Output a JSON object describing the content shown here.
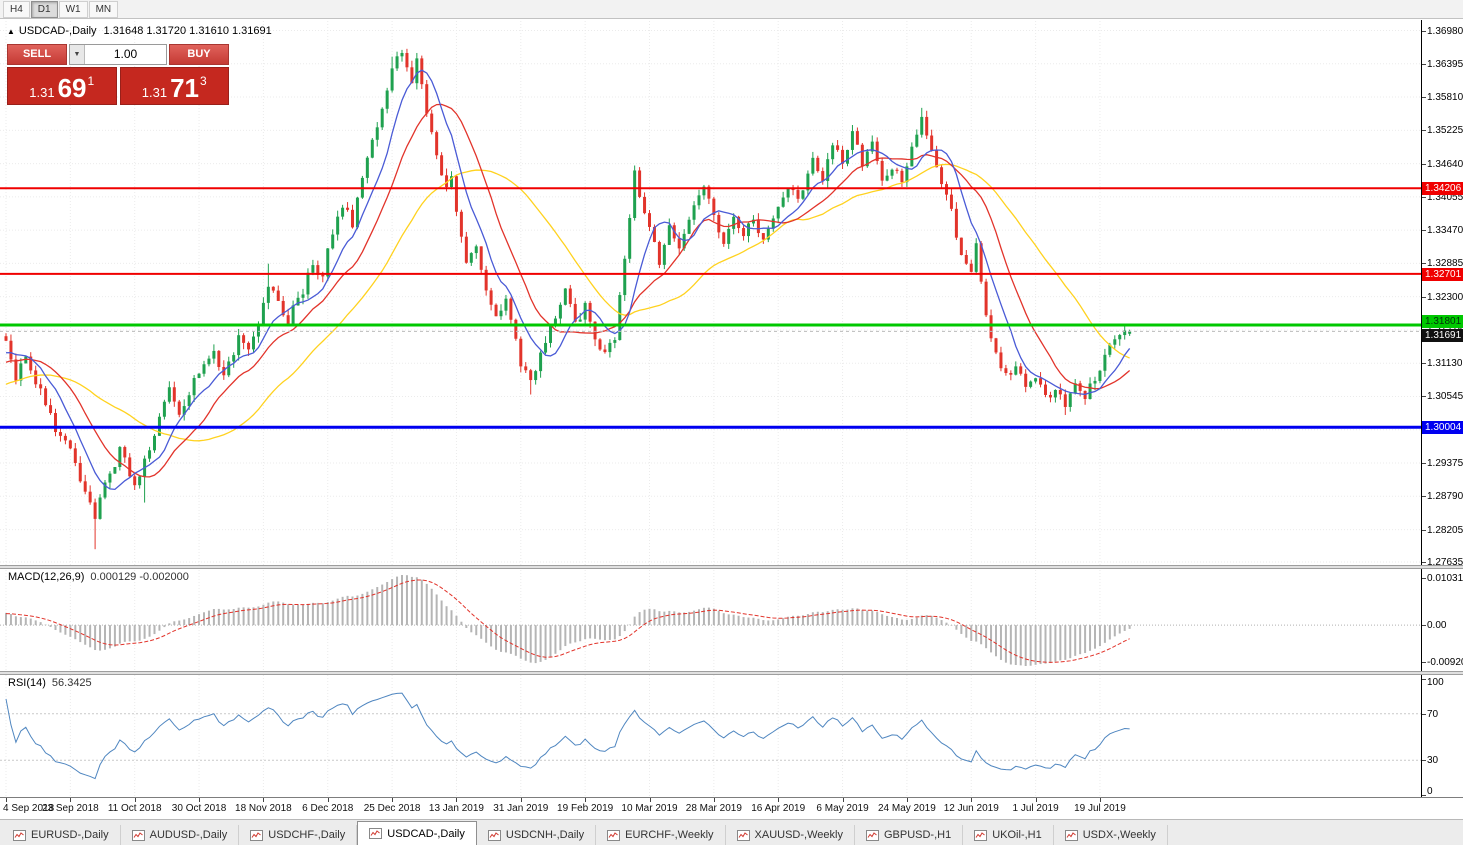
{
  "toolbar": {
    "timeframes": [
      {
        "label": "H4",
        "active": false
      },
      {
        "label": "D1",
        "active": true
      },
      {
        "label": "W1",
        "active": false
      },
      {
        "label": "MN",
        "active": false
      }
    ]
  },
  "icons": {
    "panel_toggle": "▲",
    "volume_dropdown": "▼"
  },
  "chart": {
    "title": {
      "symbol": "USDCAD-,Daily",
      "ohlc": "1.31648 1.31720 1.31610 1.31691"
    },
    "trade_panel": {
      "sell_label": "SELL",
      "buy_label": "BUY",
      "volume": "1.00",
      "sell_price": {
        "base": "1.31",
        "big": "69",
        "sup": "1"
      },
      "buy_price": {
        "base": "1.31",
        "big": "71",
        "sup": "3"
      }
    }
  },
  "indicators": {
    "macd": {
      "name": "MACD(12,26,9)",
      "values": "0.000129 -0.002000",
      "scale_top": "0.010311",
      "scale_zero": "0.00",
      "scale_bottom": "-0.009203"
    },
    "rsi": {
      "name": "RSI(14)",
      "value": "56.3425",
      "levels": [
        "100",
        "70",
        "30",
        "0"
      ]
    }
  },
  "tabs": [
    {
      "label": "EURUSD-,Daily",
      "active": false
    },
    {
      "label": "AUDUSD-,Daily",
      "active": false
    },
    {
      "label": "USDCHF-,Daily",
      "active": false
    },
    {
      "label": "USDCAD-,Daily",
      "active": true
    },
    {
      "label": "USDCNH-,Daily",
      "active": false
    },
    {
      "label": "EURCHF-,Weekly",
      "active": false
    },
    {
      "label": "XAUUSD-,Weekly",
      "active": false
    },
    {
      "label": "GBPUSD-,H1",
      "active": false
    },
    {
      "label": "UKOil-,H1",
      "active": false
    },
    {
      "label": "USDX-,Weekly",
      "active": false
    }
  ],
  "chart_data": {
    "type": "candlestick",
    "symbol": "USDCAD",
    "timeframe": "Daily",
    "last_candle": {
      "open": 1.31648,
      "high": 1.3172,
      "low": 1.3161,
      "close": 1.31691
    },
    "y_range": [
      1.27635,
      1.3698
    ],
    "price_scale_labels": [
      "1.36980",
      "1.36395",
      "1.35810",
      "1.35225",
      "1.34640",
      "1.34055",
      "1.33470",
      "1.32885",
      "1.32300",
      "1.31715",
      "1.31130",
      "1.30545",
      "1.29960",
      "1.29375",
      "1.28790",
      "1.28205",
      "1.27635"
    ],
    "x_tick_labels": [
      "4 Sep 2018",
      "23 Sep 2018",
      "11 Oct 2018",
      "30 Oct 2018",
      "18 Nov 2018",
      "6 Dec 2018",
      "25 Dec 2018",
      "13 Jan 2019",
      "31 Jan 2019",
      "19 Feb 2019",
      "10 Mar 2019",
      "28 Mar 2019",
      "16 Apr 2019",
      "6 May 2019",
      "24 May 2019",
      "12 Jun 2019",
      "1 Jul 2019",
      "19 Jul 2019"
    ],
    "candles_per_label": 13,
    "candle_count": 228,
    "warmup": {
      "count": 40,
      "start": 1.298,
      "end": 1.314
    },
    "noise_amplitude": 0.0009,
    "wick_amplitude": 0.0012,
    "close_anchors": [
      [
        0,
        1.316
      ],
      [
        2,
        1.309
      ],
      [
        4,
        1.312
      ],
      [
        7,
        1.306
      ],
      [
        10,
        1.2995
      ],
      [
        13,
        1.2958
      ],
      [
        15,
        1.2905
      ],
      [
        17,
        1.2868
      ],
      [
        18,
        1.284
      ],
      [
        20,
        1.2902
      ],
      [
        23,
        1.2958
      ],
      [
        26,
        1.2905
      ],
      [
        28,
        1.294
      ],
      [
        30,
        1.2992
      ],
      [
        33,
        1.3075
      ],
      [
        35,
        1.303
      ],
      [
        39,
        1.3095
      ],
      [
        42,
        1.313
      ],
      [
        44,
        1.309
      ],
      [
        47,
        1.3158
      ],
      [
        49,
        1.313
      ],
      [
        51,
        1.3185
      ],
      [
        53,
        1.3252
      ],
      [
        55,
        1.3215
      ],
      [
        57,
        1.319
      ],
      [
        60,
        1.324
      ],
      [
        62,
        1.329
      ],
      [
        64,
        1.3262
      ],
      [
        65,
        1.331
      ],
      [
        68,
        1.3388
      ],
      [
        70,
        1.336
      ],
      [
        72,
        1.3445
      ],
      [
        74,
        1.35
      ],
      [
        76,
        1.3558
      ],
      [
        78,
        1.3635
      ],
      [
        80,
        1.3655
      ],
      [
        82,
        1.3612
      ],
      [
        83,
        1.3648
      ],
      [
        85,
        1.356
      ],
      [
        87,
        1.347
      ],
      [
        89,
        1.342
      ],
      [
        90,
        1.3442
      ],
      [
        91,
        1.3372
      ],
      [
        93,
        1.329
      ],
      [
        95,
        1.3318
      ],
      [
        97,
        1.324
      ],
      [
        99,
        1.3192
      ],
      [
        101,
        1.3228
      ],
      [
        103,
        1.315
      ],
      [
        104,
        1.3112
      ],
      [
        106,
        1.3082
      ],
      [
        108,
        1.3128
      ],
      [
        111,
        1.32
      ],
      [
        113,
        1.3242
      ],
      [
        115,
        1.318
      ],
      [
        117,
        1.3215
      ],
      [
        119,
        1.3152
      ],
      [
        121,
        1.3125
      ],
      [
        123,
        1.316
      ],
      [
        125,
        1.33
      ],
      [
        127,
        1.3443
      ],
      [
        129,
        1.338
      ],
      [
        130,
        1.3352
      ],
      [
        132,
        1.3292
      ],
      [
        134,
        1.3358
      ],
      [
        136,
        1.3322
      ],
      [
        139,
        1.339
      ],
      [
        141,
        1.3428
      ],
      [
        143,
        1.3372
      ],
      [
        145,
        1.3322
      ],
      [
        147,
        1.3378
      ],
      [
        149,
        1.334
      ],
      [
        151,
        1.3368
      ],
      [
        153,
        1.3322
      ],
      [
        156,
        1.339
      ],
      [
        158,
        1.3428
      ],
      [
        160,
        1.34
      ],
      [
        163,
        1.3468
      ],
      [
        165,
        1.344
      ],
      [
        167,
        1.349
      ],
      [
        169,
        1.347
      ],
      [
        171,
        1.3518
      ],
      [
        173,
        1.346
      ],
      [
        175,
        1.3498
      ],
      [
        177,
        1.344
      ],
      [
        179,
        1.3455
      ],
      [
        181,
        1.3432
      ],
      [
        183,
        1.3498
      ],
      [
        185,
        1.3542
      ],
      [
        187,
        1.349
      ],
      [
        189,
        1.3432
      ],
      [
        191,
        1.3382
      ],
      [
        193,
        1.33
      ],
      [
        195,
        1.3268
      ],
      [
        196,
        1.3328
      ],
      [
        198,
        1.319
      ],
      [
        200,
        1.313
      ],
      [
        202,
        1.309
      ],
      [
        204,
        1.3112
      ],
      [
        206,
        1.307
      ],
      [
        208,
        1.3088
      ],
      [
        210,
        1.305
      ],
      [
        212,
        1.3062
      ],
      [
        214,
        1.304
      ],
      [
        216,
        1.3076
      ],
      [
        218,
        1.3056
      ],
      [
        220,
        1.309
      ],
      [
        221,
        1.3108
      ],
      [
        223,
        1.3142
      ],
      [
        225,
        1.316
      ],
      [
        227,
        1.31691
      ]
    ],
    "wick_events": [
      {
        "i": 18,
        "low": 1.2786
      },
      {
        "i": 28,
        "low": 1.2868
      },
      {
        "i": 53,
        "high": 1.3288
      },
      {
        "i": 78,
        "high": 1.3652
      },
      {
        "i": 80,
        "high": 1.3664
      },
      {
        "i": 106,
        "low": 1.3058
      },
      {
        "i": 127,
        "high": 1.3452
      },
      {
        "i": 185,
        "high": 1.3562
      },
      {
        "i": 214,
        "low": 1.3022
      }
    ],
    "moving_averages": [
      {
        "name": "slow",
        "period": 34,
        "color": "#ffd21f"
      },
      {
        "name": "medium",
        "period": 16,
        "color": "#e2342b"
      },
      {
        "name": "fast",
        "period": 8,
        "color": "#4a5bd6"
      }
    ],
    "levels": [
      {
        "label": "1.34206",
        "price": 1.34206,
        "color": "#f00000",
        "width": 2,
        "style": "solid",
        "tag_bg": "#f00000",
        "tag_fg": "#ffffff",
        "tag_dy": 0
      },
      {
        "label": "1.32701",
        "price": 1.32701,
        "color": "#f00000",
        "width": 2,
        "style": "solid",
        "tag_bg": "#f00000",
        "tag_fg": "#ffffff",
        "tag_dy": 0
      },
      {
        "label": "1.31801",
        "price": 1.31801,
        "color": "#00c800",
        "width": 3,
        "style": "solid",
        "tag_bg": "#00c800",
        "tag_fg": "#00320a",
        "tag_dy": -4
      },
      {
        "label": "1.30004",
        "price": 1.30004,
        "color": "#0000f0",
        "width": 3,
        "style": "solid",
        "tag_bg": "#0000f0",
        "tag_fg": "#ffffff",
        "tag_dy": 0
      },
      {
        "label": "1.31691",
        "price": 1.31691,
        "color": "#bbbbbb",
        "width": 1,
        "style": "dashed",
        "tag_bg": "#111111",
        "tag_fg": "#ffffff",
        "tag_dy": 4
      }
    ],
    "macd": {
      "fast": 12,
      "slow": 26,
      "signal": 9
    },
    "rsi_period": 14,
    "colors": {
      "up": "#1fa14f",
      "down": "#e2342b",
      "grid": "#ebebeb",
      "macd_hist": "#b5b5b5",
      "macd_signal": "#e2342b",
      "rsi_line": "#4f86c0"
    }
  }
}
